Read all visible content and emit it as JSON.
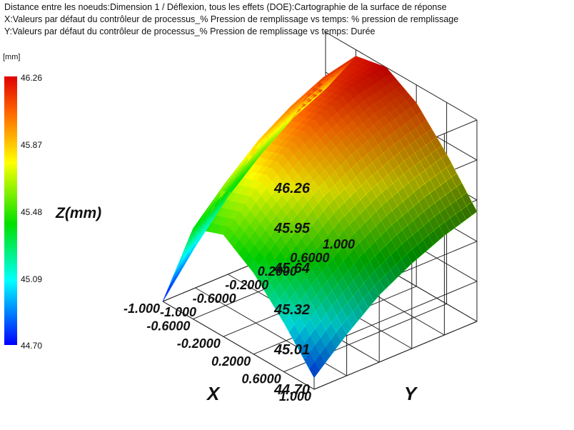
{
  "header": {
    "line1": "Distance entre les noeuds:Dimension 1 / Déflexion, tous les effets (DOE):Cartographie de la surface de réponse",
    "line2": "X:Valeurs par défaut du contrôleur de processus_% Pression de remplissage vs temps: % pression de remplissage",
    "line3": "Y:Valeurs par défaut du contrôleur de processus_% Pression de remplissage vs temps: Durée"
  },
  "colorbar": {
    "unit": "[mm]",
    "labels": [
      "46.26",
      "45.87",
      "45.48",
      "45.09",
      "44.70"
    ],
    "colors": [
      "#e00000",
      "#ff6a00",
      "#ffff00",
      "#00e000",
      "#00ffff",
      "#0000ff"
    ]
  },
  "chart_data": {
    "type": "surface",
    "xlabel": "X",
    "ylabel": "Y",
    "zlabel": "Z(mm)",
    "x_ticks": [
      "-1.000",
      "-0.6000",
      "-0.2000",
      "0.2000",
      "0.6000",
      "1.000"
    ],
    "y_ticks": [
      "-1.000",
      "-0.6000",
      "-0.2000",
      "0.2000",
      "0.6000",
      "1.000"
    ],
    "z_ticks": [
      "44.70",
      "45.01",
      "45.32",
      "45.64",
      "45.95",
      "46.26"
    ],
    "xlim": [
      -1,
      1
    ],
    "ylim": [
      -1,
      1
    ],
    "zlim": [
      44.7,
      46.26
    ],
    "grid": true,
    "surface": {
      "x": [
        -1.0,
        -0.6,
        -0.2,
        0.2,
        0.6,
        1.0
      ],
      "y": [
        -1.0,
        -0.6,
        -0.2,
        0.2,
        0.6,
        1.0
      ],
      "z": [
        [
          44.79,
          45.02,
          45.22,
          45.36,
          45.47,
          45.55
        ],
        [
          45.08,
          45.32,
          45.52,
          45.67,
          45.78,
          45.86
        ],
        [
          45.33,
          45.57,
          45.78,
          45.93,
          46.04,
          46.12
        ],
        [
          45.49,
          45.74,
          45.95,
          46.1,
          46.21,
          46.26
        ],
        [
          45.4,
          45.65,
          45.87,
          46.03,
          46.15,
          46.21
        ],
        [
          44.7,
          45.02,
          45.3,
          45.52,
          45.7,
          45.82
        ]
      ]
    }
  }
}
